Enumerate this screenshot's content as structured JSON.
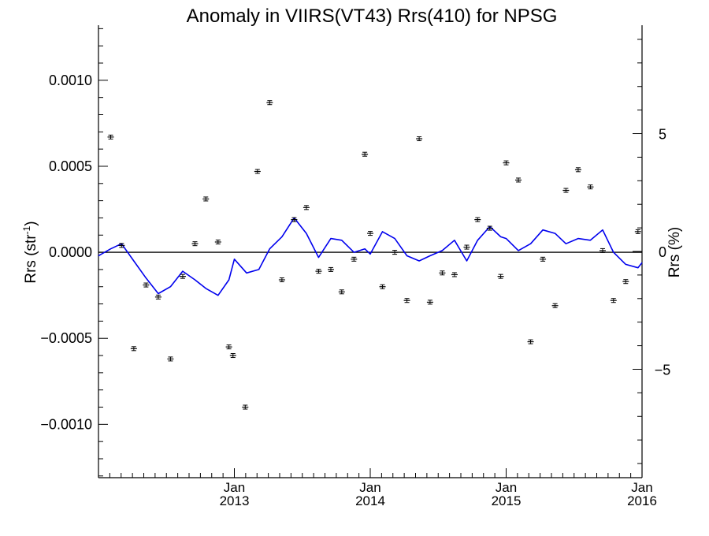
{
  "chart_data": {
    "type": "scatter",
    "title": "Anomaly in VIIRS(VT43) Rrs(410) for NPSG",
    "ylabel_left": "Rrs (str",
    "ylabel_left_sup": "-1",
    "ylabel_left_close": ")",
    "ylabel_right": "Rrs (%)",
    "xlim": [
      2012.0,
      2016.0
    ],
    "ylim_left": [
      -0.00131,
      0.00132
    ],
    "ylim_right": [
      -9.6,
      9.6
    ],
    "left_ticks": [
      {
        "value": 0.001,
        "label": "0.0010"
      },
      {
        "value": 0.0005,
        "label": "0.0005"
      },
      {
        "value": 0.0,
        "label": "0.0000"
      },
      {
        "value": -0.0005,
        "label": "−0.0005"
      },
      {
        "value": -0.001,
        "label": "−0.0010"
      }
    ],
    "right_ticks": [
      {
        "value": 5,
        "label": "5"
      },
      {
        "value": 0,
        "label": "0"
      },
      {
        "value": -5,
        "label": "−5"
      }
    ],
    "x_ticks": [
      {
        "value": 2013.0,
        "month": "Jan",
        "year": "2013"
      },
      {
        "value": 2014.0,
        "month": "Jan",
        "year": "2014"
      },
      {
        "value": 2015.0,
        "month": "Jan",
        "year": "2015"
      },
      {
        "value": 2016.0,
        "month": "Jan",
        "year": "2016"
      }
    ],
    "zero_line": true,
    "grid": false,
    "series": [
      {
        "kind": "points-with-error-bars",
        "axis": "left",
        "color": "#000000",
        "points": [
          {
            "x": 2012.09,
            "y": 0.00067
          },
          {
            "x": 2012.17,
            "y": 4e-05
          },
          {
            "x": 2012.26,
            "y": -0.00056
          },
          {
            "x": 2012.35,
            "y": -0.00019
          },
          {
            "x": 2012.44,
            "y": -0.00026
          },
          {
            "x": 2012.53,
            "y": -0.00062
          },
          {
            "x": 2012.62,
            "y": -0.00014
          },
          {
            "x": 2012.71,
            "y": 5e-05
          },
          {
            "x": 2012.79,
            "y": 0.00031
          },
          {
            "x": 2012.88,
            "y": 6e-05
          },
          {
            "x": 2012.96,
            "y": -0.00055
          },
          {
            "x": 2012.99,
            "y": -0.0006
          },
          {
            "x": 2013.08,
            "y": -0.0009
          },
          {
            "x": 2013.17,
            "y": 0.00047
          },
          {
            "x": 2013.26,
            "y": 0.00087
          },
          {
            "x": 2013.35,
            "y": -0.00016
          },
          {
            "x": 2013.44,
            "y": 0.00019
          },
          {
            "x": 2013.53,
            "y": 0.00026
          },
          {
            "x": 2013.62,
            "y": -0.00011
          },
          {
            "x": 2013.71,
            "y": -0.0001
          },
          {
            "x": 2013.79,
            "y": -0.00023
          },
          {
            "x": 2013.88,
            "y": -4e-05
          },
          {
            "x": 2013.96,
            "y": 0.00057
          },
          {
            "x": 2014.0,
            "y": 0.00011
          },
          {
            "x": 2014.09,
            "y": -0.0002
          },
          {
            "x": 2014.18,
            "y": 0.0
          },
          {
            "x": 2014.27,
            "y": -0.00028
          },
          {
            "x": 2014.36,
            "y": 0.00066
          },
          {
            "x": 2014.44,
            "y": -0.00029
          },
          {
            "x": 2014.53,
            "y": -0.00012
          },
          {
            "x": 2014.62,
            "y": -0.00013
          },
          {
            "x": 2014.71,
            "y": 3e-05
          },
          {
            "x": 2014.79,
            "y": 0.00019
          },
          {
            "x": 2014.88,
            "y": 0.00014
          },
          {
            "x": 2014.96,
            "y": -0.00014
          },
          {
            "x": 2015.0,
            "y": 0.00052
          },
          {
            "x": 2015.09,
            "y": 0.00042
          },
          {
            "x": 2015.18,
            "y": -0.00052
          },
          {
            "x": 2015.27,
            "y": -4e-05
          },
          {
            "x": 2015.36,
            "y": -0.00031
          },
          {
            "x": 2015.44,
            "y": 0.00036
          },
          {
            "x": 2015.53,
            "y": 0.00048
          },
          {
            "x": 2015.62,
            "y": 0.00038
          },
          {
            "x": 2015.71,
            "y": 1e-05
          },
          {
            "x": 2015.79,
            "y": -0.00028
          },
          {
            "x": 2015.88,
            "y": -0.00017
          },
          {
            "x": 2015.97,
            "y": 0.00012
          }
        ]
      },
      {
        "kind": "line",
        "axis": "left",
        "color": "#0000ee",
        "points": [
          {
            "x": 2012.0,
            "y": -2e-05
          },
          {
            "x": 2012.09,
            "y": 2e-05
          },
          {
            "x": 2012.17,
            "y": 5e-05
          },
          {
            "x": 2012.26,
            "y": -5e-05
          },
          {
            "x": 2012.35,
            "y": -0.00015
          },
          {
            "x": 2012.44,
            "y": -0.00024
          },
          {
            "x": 2012.53,
            "y": -0.0002
          },
          {
            "x": 2012.62,
            "y": -0.00011
          },
          {
            "x": 2012.71,
            "y": -0.00016
          },
          {
            "x": 2012.79,
            "y": -0.00021
          },
          {
            "x": 2012.88,
            "y": -0.00025
          },
          {
            "x": 2012.96,
            "y": -0.00016
          },
          {
            "x": 2013.0,
            "y": -4e-05
          },
          {
            "x": 2013.09,
            "y": -0.00012
          },
          {
            "x": 2013.18,
            "y": -0.0001
          },
          {
            "x": 2013.26,
            "y": 2e-05
          },
          {
            "x": 2013.35,
            "y": 9e-05
          },
          {
            "x": 2013.44,
            "y": 0.0002
          },
          {
            "x": 2013.53,
            "y": 0.00011
          },
          {
            "x": 2013.62,
            "y": -3e-05
          },
          {
            "x": 2013.71,
            "y": 8e-05
          },
          {
            "x": 2013.79,
            "y": 7e-05
          },
          {
            "x": 2013.88,
            "y": 0.0
          },
          {
            "x": 2013.96,
            "y": 2e-05
          },
          {
            "x": 2014.0,
            "y": -1e-05
          },
          {
            "x": 2014.09,
            "y": 0.00012
          },
          {
            "x": 2014.18,
            "y": 8e-05
          },
          {
            "x": 2014.27,
            "y": -2e-05
          },
          {
            "x": 2014.36,
            "y": -5e-05
          },
          {
            "x": 2014.44,
            "y": -2e-05
          },
          {
            "x": 2014.53,
            "y": 1e-05
          },
          {
            "x": 2014.62,
            "y": 7e-05
          },
          {
            "x": 2014.71,
            "y": -5e-05
          },
          {
            "x": 2014.79,
            "y": 7e-05
          },
          {
            "x": 2014.88,
            "y": 0.00015
          },
          {
            "x": 2014.96,
            "y": 9e-05
          },
          {
            "x": 2015.0,
            "y": 8e-05
          },
          {
            "x": 2015.09,
            "y": 1e-05
          },
          {
            "x": 2015.18,
            "y": 5e-05
          },
          {
            "x": 2015.27,
            "y": 0.00013
          },
          {
            "x": 2015.36,
            "y": 0.00011
          },
          {
            "x": 2015.44,
            "y": 5e-05
          },
          {
            "x": 2015.53,
            "y": 8e-05
          },
          {
            "x": 2015.62,
            "y": 7e-05
          },
          {
            "x": 2015.71,
            "y": 0.00013
          },
          {
            "x": 2015.79,
            "y": 0.0
          },
          {
            "x": 2015.88,
            "y": -7e-05
          },
          {
            "x": 2015.97,
            "y": -9e-05
          },
          {
            "x": 2016.0,
            "y": -6e-05
          }
        ]
      }
    ]
  }
}
